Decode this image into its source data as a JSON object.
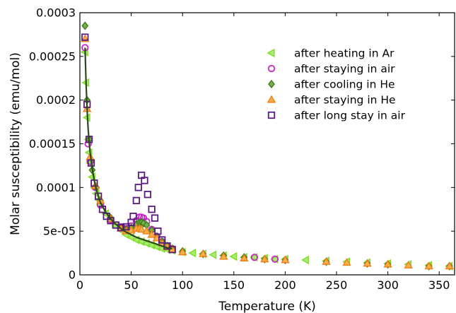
{
  "chart_data": {
    "type": "scatter",
    "title": "",
    "xlabel": "Temperature (K)",
    "ylabel": "Molar susceptibility (emu/mol)",
    "xlim": [
      0,
      365
    ],
    "ylim": [
      0,
      0.0003
    ],
    "xticks": [
      0,
      50,
      100,
      150,
      200,
      250,
      300,
      350
    ],
    "yticks": [
      0,
      5e-05,
      0.0001,
      0.00015,
      0.0002,
      0.00025,
      0.0003
    ],
    "xtick_labels": [
      "0",
      "50",
      "100",
      "150",
      "200",
      "250",
      "300",
      "350"
    ],
    "ytick_labels": [
      "0",
      "5e-05",
      "0.0001",
      "0.00015",
      "0.0002",
      "0.00025",
      "0.0003"
    ],
    "grid": false,
    "legend_position": "top-right",
    "series": [
      {
        "name": "after heating in Ar",
        "marker": "triangle-left",
        "color": "#7fdc2a",
        "points": [
          [
            5,
            0.000255
          ],
          [
            6,
            0.00022
          ],
          [
            7,
            0.00018
          ],
          [
            8,
            0.000155
          ],
          [
            9,
            0.00014
          ],
          [
            10,
            0.000128
          ],
          [
            12,
            0.000112
          ],
          [
            14,
            0.0001
          ],
          [
            16,
            9.3e-05
          ],
          [
            18,
            8.6e-05
          ],
          [
            20,
            8e-05
          ],
          [
            25,
            7e-05
          ],
          [
            30,
            6.2e-05
          ],
          [
            35,
            5.6e-05
          ],
          [
            40,
            5.1e-05
          ],
          [
            45,
            4.6e-05
          ],
          [
            50,
            4.3e-05
          ],
          [
            55,
            4e-05
          ],
          [
            60,
            3.8e-05
          ],
          [
            65,
            3.6e-05
          ],
          [
            70,
            3.4e-05
          ],
          [
            75,
            3.2e-05
          ],
          [
            80,
            3e-05
          ],
          [
            85,
            2.9e-05
          ],
          [
            90,
            2.8e-05
          ],
          [
            100,
            2.6e-05
          ],
          [
            110,
            2.5e-05
          ],
          [
            120,
            2.4e-05
          ],
          [
            130,
            2.3e-05
          ],
          [
            140,
            2.2e-05
          ],
          [
            150,
            2.1e-05
          ],
          [
            160,
            2e-05
          ],
          [
            170,
            2e-05
          ],
          [
            180,
            1.9e-05
          ],
          [
            190,
            1.8e-05
          ],
          [
            200,
            1.8e-05
          ],
          [
            220,
            1.7e-05
          ],
          [
            240,
            1.6e-05
          ],
          [
            260,
            1.5e-05
          ],
          [
            280,
            1.4e-05
          ],
          [
            300,
            1.3e-05
          ],
          [
            320,
            1.2e-05
          ],
          [
            340,
            1.1e-05
          ],
          [
            360,
            1e-05
          ]
        ]
      },
      {
        "name": "after staying in air",
        "marker": "circle",
        "color": "#cc22cc",
        "points": [
          [
            5,
            0.00026
          ],
          [
            8,
            0.00015
          ],
          [
            10,
            0.00013
          ],
          [
            15,
            0.0001
          ],
          [
            20,
            8e-05
          ],
          [
            30,
            6.3e-05
          ],
          [
            40,
            5.5e-05
          ],
          [
            45,
            5.3e-05
          ],
          [
            50,
            5.6e-05
          ],
          [
            55,
            6.2e-05
          ],
          [
            58,
            6.6e-05
          ],
          [
            60,
            6.6e-05
          ],
          [
            62,
            6.5e-05
          ],
          [
            65,
            6.1e-05
          ],
          [
            70,
            5.2e-05
          ],
          [
            75,
            4.4e-05
          ],
          [
            80,
            3.8e-05
          ],
          [
            85,
            3.3e-05
          ],
          [
            90,
            3e-05
          ],
          [
            170,
            2e-05
          ],
          [
            190,
            1.8e-05
          ]
        ]
      },
      {
        "name": "after cooling in He",
        "marker": "diamond",
        "color": "#3a7a1a",
        "points": [
          [
            5,
            0.000285
          ],
          [
            7,
            0.0002
          ],
          [
            9,
            0.000155
          ],
          [
            12,
            0.00012
          ],
          [
            16,
            0.0001
          ],
          [
            20,
            8.5e-05
          ],
          [
            30,
            6.5e-05
          ],
          [
            40,
            5.4e-05
          ],
          [
            45,
            5.2e-05
          ],
          [
            50,
            5.4e-05
          ],
          [
            55,
            5.8e-05
          ],
          [
            58,
            6e-05
          ],
          [
            60,
            6e-05
          ],
          [
            62,
            5.9e-05
          ],
          [
            65,
            5.7e-05
          ],
          [
            70,
            5.1e-05
          ],
          [
            75,
            4.4e-05
          ],
          [
            80,
            3.8e-05
          ],
          [
            85,
            3.3e-05
          ],
          [
            90,
            3e-05
          ],
          [
            100,
            2.7e-05
          ],
          [
            120,
            2.4e-05
          ],
          [
            140,
            2.2e-05
          ],
          [
            160,
            2e-05
          ],
          [
            180,
            1.8e-05
          ],
          [
            200,
            1.7e-05
          ],
          [
            240,
            1.5e-05
          ],
          [
            280,
            1.3e-05
          ],
          [
            300,
            1.2e-05
          ],
          [
            340,
            1e-05
          ],
          [
            360,
            1e-05
          ]
        ]
      },
      {
        "name": "after staying in He",
        "marker": "triangle-up",
        "color": "#f07f1a",
        "points": [
          [
            5,
            0.00027
          ],
          [
            7,
            0.00019
          ],
          [
            10,
            0.000135
          ],
          [
            15,
            0.000102
          ],
          [
            20,
            8.5e-05
          ],
          [
            30,
            6.4e-05
          ],
          [
            40,
            5.3e-05
          ],
          [
            45,
            5e-05
          ],
          [
            50,
            5.1e-05
          ],
          [
            55,
            5.3e-05
          ],
          [
            58,
            5.3e-05
          ],
          [
            60,
            5.2e-05
          ],
          [
            65,
            5e-05
          ],
          [
            70,
            4.6e-05
          ],
          [
            75,
            4.2e-05
          ],
          [
            80,
            3.6e-05
          ],
          [
            85,
            3.2e-05
          ],
          [
            90,
            2.9e-05
          ],
          [
            100,
            2.6e-05
          ],
          [
            120,
            2.4e-05
          ],
          [
            140,
            2.1e-05
          ],
          [
            160,
            1.9e-05
          ],
          [
            180,
            1.8e-05
          ],
          [
            200,
            1.7e-05
          ],
          [
            240,
            1.5e-05
          ],
          [
            260,
            1.4e-05
          ],
          [
            280,
            1.3e-05
          ],
          [
            300,
            1.2e-05
          ],
          [
            320,
            1.1e-05
          ],
          [
            340,
            1e-05
          ],
          [
            360,
            1e-05
          ]
        ]
      },
      {
        "name": "after long stay in air",
        "marker": "square",
        "color": "#5a1a80",
        "points": [
          [
            5,
            0.000272
          ],
          [
            7,
            0.000195
          ],
          [
            9,
            0.000155
          ],
          [
            11,
            0.000128
          ],
          [
            14,
            0.000105
          ],
          [
            18,
            9e-05
          ],
          [
            22,
            7.5e-05
          ],
          [
            26,
            6.7e-05
          ],
          [
            30,
            6.2e-05
          ],
          [
            35,
            5.7e-05
          ],
          [
            40,
            5.4e-05
          ],
          [
            45,
            5.5e-05
          ],
          [
            50,
            6e-05
          ],
          [
            52,
            6.7e-05
          ],
          [
            55,
            8.5e-05
          ],
          [
            57,
            0.0001
          ],
          [
            60,
            0.000114
          ],
          [
            63,
            0.000108
          ],
          [
            66,
            9.2e-05
          ],
          [
            70,
            7.5e-05
          ],
          [
            73,
            6.5e-05
          ],
          [
            76,
            5e-05
          ],
          [
            80,
            4e-05
          ],
          [
            85,
            3.3e-05
          ],
          [
            90,
            2.9e-05
          ]
        ]
      },
      {
        "name": "",
        "type": "line",
        "color": "#2a4a1a",
        "points": [
          [
            5,
            0.00026
          ],
          [
            6,
            0.00022
          ],
          [
            7,
            0.00019
          ],
          [
            8,
            0.000168
          ],
          [
            9,
            0.000152
          ],
          [
            10,
            0.00014
          ],
          [
            12,
            0.000122
          ],
          [
            14,
            0.000108
          ],
          [
            16,
            9.8e-05
          ],
          [
            18,
            9e-05
          ],
          [
            20,
            8.3e-05
          ],
          [
            25,
            7.2e-05
          ],
          [
            30,
            6.4e-05
          ],
          [
            35,
            5.8e-05
          ],
          [
            40,
            5.3e-05
          ],
          [
            45,
            4.9e-05
          ],
          [
            50,
            4.6e-05
          ],
          [
            55,
            4.3e-05
          ],
          [
            60,
            4.1e-05
          ],
          [
            65,
            3.9e-05
          ],
          [
            70,
            3.7e-05
          ],
          [
            75,
            3.5e-05
          ],
          [
            80,
            3.3e-05
          ],
          [
            85,
            3.1e-05
          ],
          [
            90,
            3e-05
          ]
        ]
      }
    ]
  }
}
